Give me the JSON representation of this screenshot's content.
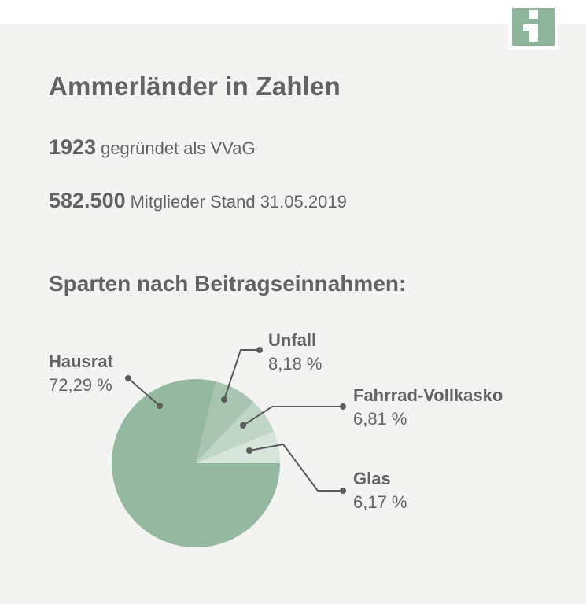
{
  "header": {
    "title": "Ammerländer in Zahlen",
    "logo_icon": "info-i-logo-icon",
    "logo_color": "#8fb49c"
  },
  "facts": [
    {
      "number": "1923",
      "text": "gegründet als VVaG"
    },
    {
      "number": "582.500",
      "text": "Mitglieder Stand 31.05.2019"
    }
  ],
  "chart_section": {
    "title": "Sparten nach Beitragseinnahmen:"
  },
  "chart_data": {
    "type": "pie",
    "title": "Sparten nach Beitragseinnahmen:",
    "slices": [
      {
        "name": "Hausrat",
        "value": 72.29,
        "label": "72,29 %",
        "color": "#95b8a0"
      },
      {
        "name": "Unfall",
        "value": 8.18,
        "label": "8,18 %",
        "color": "#a9c5b1"
      },
      {
        "name": "Fahrrad-Vollkasko",
        "value": 6.81,
        "label": "6,81 %",
        "color": "#bfd5c5"
      },
      {
        "name": "Glas",
        "value": 6.17,
        "label": "6,17 %",
        "color": "#d6e5da"
      }
    ],
    "legend": "callouts"
  }
}
